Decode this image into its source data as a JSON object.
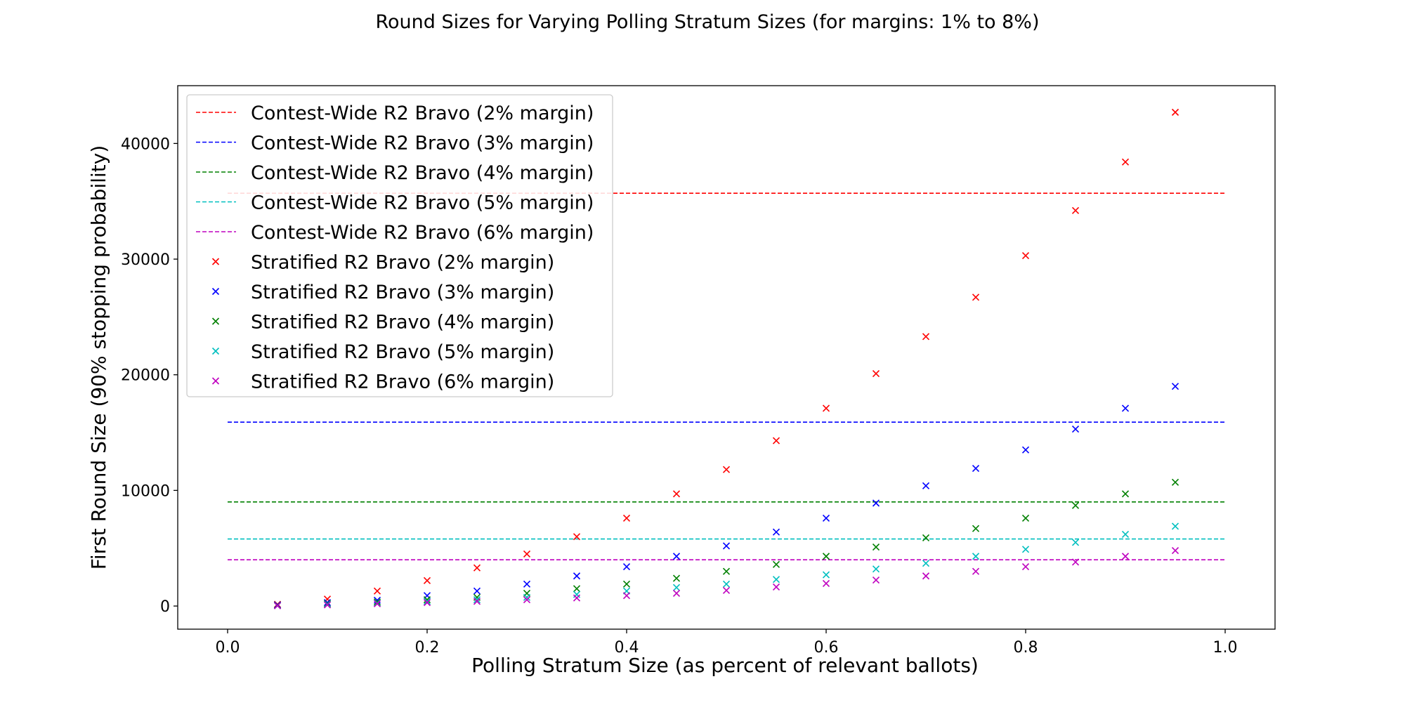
{
  "chart_data": {
    "type": "scatter",
    "title": "Round Sizes for Varying Polling Stratum Sizes (for margins: 1% to 8%)",
    "xlabel": "Polling Stratum Size (as percent of relevant ballots)",
    "ylabel": "First Round Size (90% stopping probability)",
    "xlim": [
      -0.05,
      1.05
    ],
    "ylim": [
      -2000,
      45000
    ],
    "xticks": [
      0.0,
      0.2,
      0.4,
      0.6,
      0.8,
      1.0
    ],
    "xtick_labels": [
      "0.0",
      "0.2",
      "0.4",
      "0.6",
      "0.8",
      "1.0"
    ],
    "yticks": [
      0,
      10000,
      20000,
      30000,
      40000
    ],
    "ytick_labels": [
      "0",
      "10000",
      "20000",
      "30000",
      "40000"
    ],
    "grid": false,
    "legend_position": "top-left",
    "lines": [
      {
        "name": "Contest-Wide R2 Bravo (2% margin)",
        "color": "#ff0000",
        "y": 35700,
        "x_range": [
          0.0,
          1.0
        ]
      },
      {
        "name": "Contest-Wide R2 Bravo (3% margin)",
        "color": "#0000ff",
        "y": 15900,
        "x_range": [
          0.0,
          1.0
        ]
      },
      {
        "name": "Contest-Wide R2 Bravo (4% margin)",
        "color": "#008000",
        "y": 9000,
        "x_range": [
          0.0,
          1.0
        ]
      },
      {
        "name": "Contest-Wide R2 Bravo (5% margin)",
        "color": "#00bfbf",
        "y": 5800,
        "x_range": [
          0.0,
          1.0
        ]
      },
      {
        "name": "Contest-Wide R2 Bravo (6% margin)",
        "color": "#bf00bf",
        "y": 4000,
        "x_range": [
          0.0,
          1.0
        ]
      }
    ],
    "x": [
      0.05,
      0.1,
      0.15,
      0.2,
      0.25,
      0.3,
      0.35,
      0.4,
      0.45,
      0.5,
      0.55,
      0.6,
      0.65,
      0.7,
      0.75,
      0.8,
      0.85,
      0.9,
      0.95
    ],
    "series": [
      {
        "name": "Stratified R2 Bravo (2% margin)",
        "color": "#ff0000",
        "values": [
          150,
          600,
          1300,
          2200,
          3300,
          4500,
          6000,
          7600,
          9700,
          11800,
          14300,
          17100,
          20100,
          23300,
          26700,
          30300,
          34200,
          38400,
          42700
        ]
      },
      {
        "name": "Stratified R2 Bravo (3% margin)",
        "color": "#0000ff",
        "values": [
          100,
          300,
          500,
          900,
          1300,
          1900,
          2600,
          3400,
          4300,
          5200,
          6400,
          7600,
          8900,
          10400,
          11900,
          13500,
          15300,
          17100,
          19000
        ]
      },
      {
        "name": "Stratified R2 Bravo (4% margin)",
        "color": "#008000",
        "values": [
          50,
          200,
          350,
          550,
          750,
          1100,
          1500,
          1900,
          2400,
          3000,
          3600,
          4300,
          5100,
          5900,
          6700,
          7600,
          8700,
          9700,
          10700
        ]
      },
      {
        "name": "Stratified R2 Bravo (5% margin)",
        "color": "#00bfbf",
        "values": [
          30,
          150,
          250,
          400,
          550,
          750,
          1000,
          1300,
          1600,
          1900,
          2300,
          2700,
          3200,
          3700,
          4300,
          4900,
          5500,
          6200,
          6900
        ]
      },
      {
        "name": "Stratified R2 Bravo (6% margin)",
        "color": "#bf00bf",
        "values": [
          20,
          100,
          200,
          300,
          400,
          550,
          700,
          900,
          1100,
          1350,
          1650,
          1950,
          2250,
          2600,
          3000,
          3400,
          3800,
          4300,
          4800
        ]
      }
    ]
  }
}
